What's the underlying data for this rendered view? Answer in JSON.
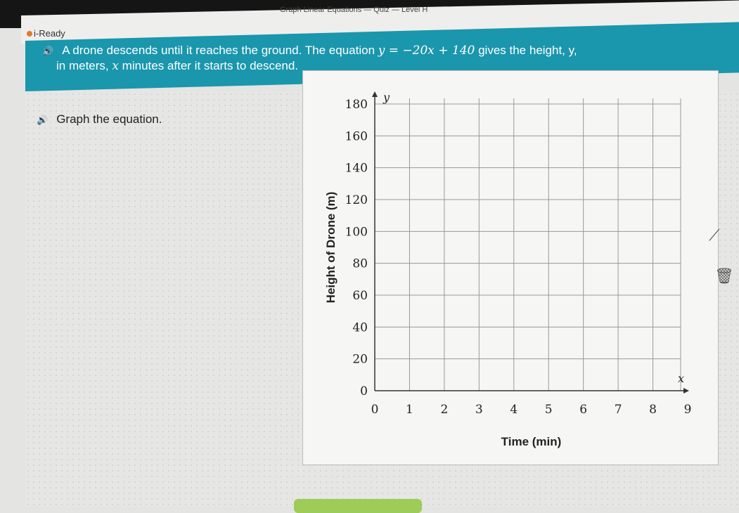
{
  "header": {
    "brand": "i-Ready",
    "quiz_title": "Graph Linear Equations — Quiz — Level H"
  },
  "question": {
    "line1_pre": "A drone descends until it reaches the ground. The equation ",
    "equation": "y = −20x + 140",
    "line1_post": " gives the height, y,",
    "line2_var": "x",
    "line2": " minutes after it starts to descend.",
    "line2_pre": "in meters, "
  },
  "prompt": "Graph the equation.",
  "tools": {
    "line_tool": "line-tool-icon",
    "delete": "trash-icon"
  },
  "chart_data": {
    "type": "scatter",
    "xlabel": "Time (min)",
    "ylabel": "Height of Drone (m)",
    "x_axis_var": "x",
    "y_axis_var": "y",
    "xlim": [
      0,
      9
    ],
    "ylim": [
      0,
      180
    ],
    "xticks": [
      "0",
      "1",
      "2",
      "3",
      "4",
      "5",
      "6",
      "7",
      "8",
      "9"
    ],
    "yticks": [
      "0",
      "20",
      "40",
      "60",
      "80",
      "100",
      "120",
      "140",
      "160",
      "180"
    ],
    "grid": true,
    "points": []
  },
  "colors": {
    "banner": "#1a96ad",
    "button": "#9dcc58"
  }
}
